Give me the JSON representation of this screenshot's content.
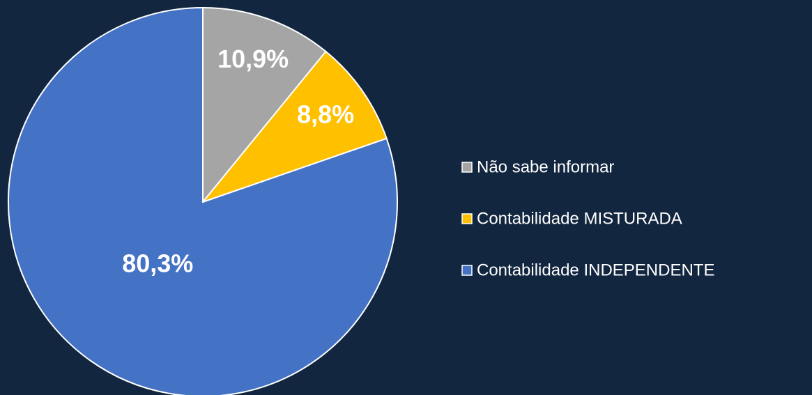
{
  "chart_data": {
    "type": "pie",
    "categories": [
      "Não sabe informar",
      "Contabilidade MISTURADA",
      "Contabilidade INDEPENDENTE"
    ],
    "values": [
      10.9,
      8.8,
      80.3
    ],
    "value_labels": [
      "10,9%",
      "8,8%",
      "80,3%"
    ],
    "colors": [
      "#a5a5a5",
      "#ffc000",
      "#4472c4"
    ],
    "legend": "right"
  }
}
